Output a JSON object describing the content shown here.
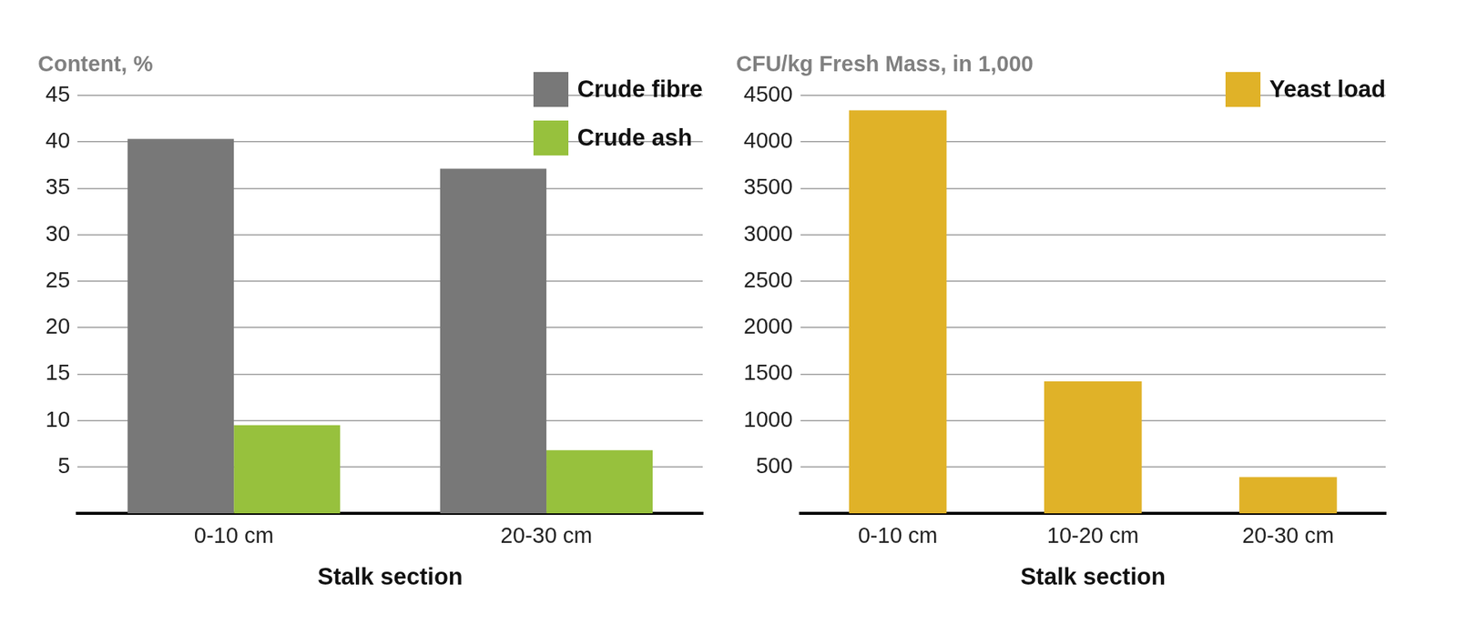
{
  "chart_data": [
    {
      "type": "bar",
      "title": "Content, %",
      "xlabel": "Stalk section",
      "categories": [
        "0-10 cm",
        "20-30 cm"
      ],
      "series": [
        {
          "name": "Crude fibre",
          "color": "#787878",
          "values": [
            40.3,
            37.1
          ]
        },
        {
          "name": "Crude ash",
          "color": "#97c13d",
          "values": [
            9.5,
            6.8
          ]
        }
      ],
      "ylim": [
        0,
        45
      ],
      "yticks": [
        5,
        10,
        15,
        20,
        25,
        30,
        35,
        40,
        45
      ],
      "grid": true,
      "legend": "top-right"
    },
    {
      "type": "bar",
      "title": "CFU/kg Fresh Mass, in 1,000",
      "xlabel": "Stalk section",
      "categories": [
        "0-10 cm",
        "10-20 cm",
        "20-30 cm"
      ],
      "series": [
        {
          "name": "Yeast load",
          "color": "#e0b228",
          "values": [
            4340,
            1420,
            390
          ]
        }
      ],
      "ylim": [
        0,
        4500
      ],
      "yticks": [
        500,
        1000,
        1500,
        2000,
        2500,
        3000,
        3500,
        4000,
        4500
      ],
      "grid": true,
      "legend": "top-right"
    }
  ]
}
